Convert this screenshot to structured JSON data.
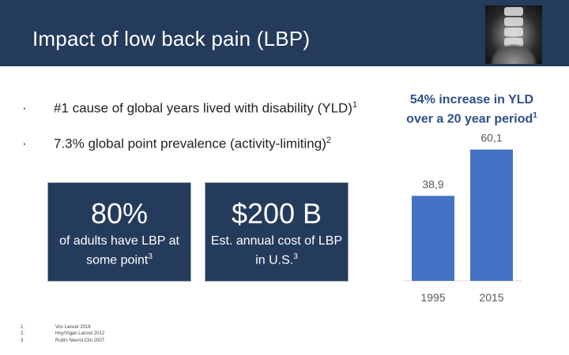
{
  "title": "Impact of low back pain (LBP)",
  "image": {
    "icon": "spine-xray-icon"
  },
  "bullets": [
    {
      "marker": "·",
      "text": "#1 cause of global years lived with disability (YLD)",
      "ref": "1"
    },
    {
      "marker": "·",
      "text": "7.3% global point prevalence (activity-limiting)",
      "ref": "2"
    }
  ],
  "cards": [
    {
      "value": "80%",
      "label": "of adults have LBP at some point",
      "ref": "3"
    },
    {
      "value": "$200 B",
      "label": "Est. annual cost of LBP in U.S.",
      "ref": "3"
    }
  ],
  "chart_header": {
    "text": "54% increase in YLD over a 20 year period",
    "ref": "1"
  },
  "chart_data": {
    "type": "bar",
    "categories": [
      "1995",
      "2015"
    ],
    "values": [
      38.9,
      60.1
    ],
    "value_labels": [
      "38,9",
      "60,1"
    ],
    "title": "",
    "xlabel": "",
    "ylabel": "",
    "ylim": [
      0,
      65
    ],
    "grid": false,
    "legend": "none",
    "color": "#4472c4"
  },
  "references": [
    {
      "num": "1.",
      "text": "Vos Lancet 2016"
    },
    {
      "num": "2.",
      "text": "Hoy/Vigan Lancet 2012"
    },
    {
      "num": "3.",
      "text": "Rubin Neurol Clin 2007"
    }
  ]
}
